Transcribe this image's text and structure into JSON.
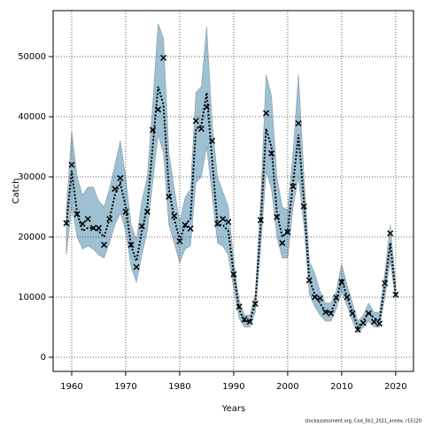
{
  "chart_data": {
    "type": "line",
    "xlabel": "Years",
    "ylabel": "Catch",
    "footnote": "stockassessment.org, Cod_5b1_2021_annex, r15120",
    "x": [
      1959,
      1960,
      1961,
      1962,
      1963,
      1964,
      1965,
      1966,
      1967,
      1968,
      1969,
      1970,
      1971,
      1972,
      1973,
      1974,
      1975,
      1976,
      1977,
      1978,
      1979,
      1980,
      1981,
      1982,
      1983,
      1984,
      1985,
      1986,
      1987,
      1988,
      1989,
      1990,
      1991,
      1992,
      1993,
      1994,
      1995,
      1996,
      1997,
      1998,
      1999,
      2000,
      2001,
      2002,
      2003,
      2004,
      2005,
      2006,
      2007,
      2008,
      2009,
      2010,
      2011,
      2012,
      2013,
      2014,
      2015,
      2016,
      2017,
      2018,
      2019,
      2020
    ],
    "observed": [
      22300,
      32000,
      23800,
      22200,
      23000,
      21500,
      21500,
      18700,
      23000,
      28000,
      29800,
      24200,
      18700,
      15000,
      21800,
      24200,
      37800,
      41200,
      49800,
      26700,
      23500,
      19300,
      22000,
      21400,
      39300,
      38000,
      41600,
      36000,
      22200,
      23000,
      22500,
      13800,
      8400,
      6300,
      5900,
      8900,
      22800,
      40600,
      33900,
      23300,
      19000,
      20800,
      28400,
      38900,
      25100,
      12800,
      10000,
      9800,
      7500,
      7300,
      9900,
      12500,
      10000,
      7300,
      4600,
      5700,
      7300,
      5900,
      5600,
      12300,
      20600,
      10400
    ],
    "estimate": [
      22000,
      31000,
      24000,
      21000,
      21500,
      21500,
      21000,
      20000,
      23000,
      27000,
      29000,
      25000,
      18500,
      16000,
      21000,
      25000,
      35000,
      45000,
      42000,
      28000,
      23000,
      19500,
      22000,
      23000,
      38000,
      38500,
      44000,
      33000,
      22000,
      22000,
      21000,
      14000,
      8000,
      6000,
      6000,
      9000,
      22000,
      38000,
      35000,
      24000,
      20000,
      21000,
      29000,
      37000,
      26000,
      13000,
      10500,
      9000,
      7500,
      7500,
      9500,
      13000,
      10000,
      7500,
      5000,
      6000,
      7500,
      6500,
      6000,
      12000,
      19000,
      10500
    ],
    "upper": [
      24500,
      37500,
      30000,
      27000,
      28300,
      28300,
      26000,
      25000,
      28000,
      32000,
      36000,
      30000,
      22000,
      19500,
      26000,
      30000,
      42000,
      55500,
      53000,
      34000,
      28000,
      22500,
      26500,
      28000,
      44000,
      45000,
      55000,
      39000,
      30000,
      27500,
      25000,
      16000,
      9500,
      7000,
      7000,
      10500,
      26000,
      47000,
      43500,
      30000,
      25000,
      24500,
      34000,
      47000,
      30500,
      16000,
      14000,
      11000,
      9000,
      9000,
      11000,
      15500,
      12000,
      9000,
      6000,
      7000,
      9000,
      7500,
      7500,
      14000,
      22000,
      12000
    ],
    "lower": [
      17000,
      25000,
      20000,
      18000,
      18500,
      18000,
      17000,
      16500,
      19000,
      22000,
      24000,
      21000,
      15000,
      12500,
      17000,
      21000,
      29000,
      37000,
      34000,
      22000,
      19000,
      15700,
      18000,
      18500,
      29000,
      30000,
      35000,
      27000,
      19000,
      18500,
      17000,
      11500,
      6500,
      5000,
      5000,
      7500,
      18000,
      31000,
      28000,
      20000,
      16500,
      16500,
      25000,
      30000,
      22000,
      10500,
      8500,
      7000,
      6000,
      6000,
      8000,
      11000,
      8500,
      6000,
      4000,
      5000,
      6000,
      5000,
      5000,
      10000,
      16000,
      9500
    ],
    "band_color": "#9dc0d3",
    "line_color": "#000000",
    "xlim": [
      1956.56,
      2023.3
    ],
    "ylim": [
      -2353,
      57647
    ],
    "xticks": [
      1960,
      1970,
      1980,
      1990,
      2000,
      2010,
      2020
    ],
    "yticks": [
      0,
      10000,
      20000,
      30000,
      40000,
      50000
    ],
    "grid": true
  }
}
